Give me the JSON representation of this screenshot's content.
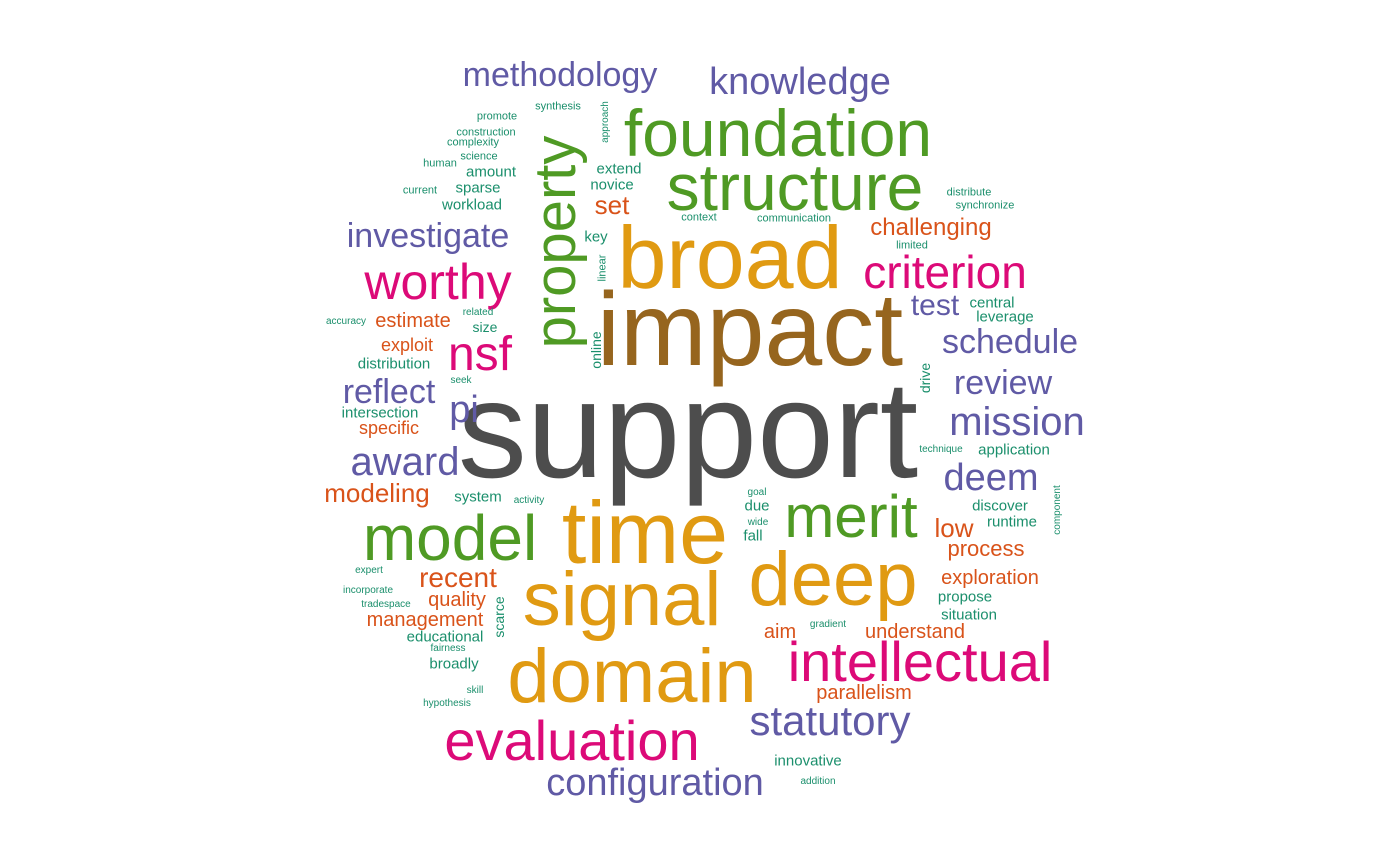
{
  "palette": {
    "gray": "#4d4d4d",
    "brown": "#96651e",
    "orange": "#e09a12",
    "green": "#4f9a24",
    "pink": "#dc0a78",
    "purple": "#605aa5",
    "red": "#d9531a",
    "teal": "#1b8f6c"
  },
  "words": [
    {
      "text": "support",
      "color": "gray"
    },
    {
      "text": "impact",
      "color": "brown"
    },
    {
      "text": "broad",
      "color": "orange"
    },
    {
      "text": "time",
      "color": "orange"
    },
    {
      "text": "signal",
      "color": "orange"
    },
    {
      "text": "deep",
      "color": "orange"
    },
    {
      "text": "domain",
      "color": "orange"
    },
    {
      "text": "structure",
      "color": "green"
    },
    {
      "text": "foundation",
      "color": "green"
    },
    {
      "text": "property",
      "color": "green"
    },
    {
      "text": "model",
      "color": "green"
    },
    {
      "text": "merit",
      "color": "green"
    },
    {
      "text": "intellectual",
      "color": "pink"
    },
    {
      "text": "evaluation",
      "color": "pink"
    },
    {
      "text": "worthy",
      "color": "pink"
    },
    {
      "text": "criterion",
      "color": "pink"
    },
    {
      "text": "nsf",
      "color": "pink"
    },
    {
      "text": "statutory",
      "color": "purple"
    },
    {
      "text": "configuration",
      "color": "purple"
    },
    {
      "text": "knowledge",
      "color": "purple"
    },
    {
      "text": "methodology",
      "color": "purple"
    },
    {
      "text": "investigate",
      "color": "purple"
    },
    {
      "text": "schedule",
      "color": "purple"
    },
    {
      "text": "mission",
      "color": "purple"
    },
    {
      "text": "review",
      "color": "purple"
    },
    {
      "text": "deem",
      "color": "purple"
    },
    {
      "text": "award",
      "color": "purple"
    },
    {
      "text": "reflect",
      "color": "purple"
    },
    {
      "text": "pi",
      "color": "purple"
    },
    {
      "text": "test",
      "color": "purple"
    },
    {
      "text": "challenging",
      "color": "red"
    },
    {
      "text": "modeling",
      "color": "red"
    },
    {
      "text": "recent",
      "color": "red"
    },
    {
      "text": "low",
      "color": "red"
    },
    {
      "text": "process",
      "color": "red"
    },
    {
      "text": "exploration",
      "color": "red"
    },
    {
      "text": "management",
      "color": "red"
    },
    {
      "text": "understand",
      "color": "red"
    },
    {
      "text": "parallelism",
      "color": "red"
    },
    {
      "text": "quality",
      "color": "red"
    },
    {
      "text": "estimate",
      "color": "red"
    },
    {
      "text": "exploit",
      "color": "red"
    },
    {
      "text": "specific",
      "color": "red"
    },
    {
      "text": "set",
      "color": "red"
    },
    {
      "text": "aim",
      "color": "red"
    },
    {
      "text": "extend",
      "color": "teal"
    },
    {
      "text": "novice",
      "color": "teal"
    },
    {
      "text": "amount",
      "color": "teal"
    },
    {
      "text": "sparse",
      "color": "teal"
    },
    {
      "text": "workload",
      "color": "teal"
    },
    {
      "text": "key",
      "color": "teal"
    },
    {
      "text": "central",
      "color": "teal"
    },
    {
      "text": "leverage",
      "color": "teal"
    },
    {
      "text": "size",
      "color": "teal"
    },
    {
      "text": "distribution",
      "color": "teal"
    },
    {
      "text": "intersection",
      "color": "teal"
    },
    {
      "text": "application",
      "color": "teal"
    },
    {
      "text": "system",
      "color": "teal"
    },
    {
      "text": "discover",
      "color": "teal"
    },
    {
      "text": "runtime",
      "color": "teal"
    },
    {
      "text": "due",
      "color": "teal"
    },
    {
      "text": "fall",
      "color": "teal"
    },
    {
      "text": "propose",
      "color": "teal"
    },
    {
      "text": "situation",
      "color": "teal"
    },
    {
      "text": "educational",
      "color": "teal"
    },
    {
      "text": "broadly",
      "color": "teal"
    },
    {
      "text": "innovative",
      "color": "teal"
    },
    {
      "text": "online",
      "color": "teal"
    },
    {
      "text": "drive",
      "color": "teal"
    },
    {
      "text": "scarce",
      "color": "teal"
    },
    {
      "text": "linear",
      "color": "teal"
    },
    {
      "text": "promote",
      "color": "teal"
    },
    {
      "text": "synthesis",
      "color": "teal"
    },
    {
      "text": "construction",
      "color": "teal"
    },
    {
      "text": "complexity",
      "color": "teal"
    },
    {
      "text": "human",
      "color": "teal"
    },
    {
      "text": "science",
      "color": "teal"
    },
    {
      "text": "current",
      "color": "teal"
    },
    {
      "text": "context",
      "color": "teal"
    },
    {
      "text": "communication",
      "color": "teal"
    },
    {
      "text": "distribute",
      "color": "teal"
    },
    {
      "text": "synchronize",
      "color": "teal"
    },
    {
      "text": "limited",
      "color": "teal"
    },
    {
      "text": "accuracy",
      "color": "teal"
    },
    {
      "text": "related",
      "color": "teal"
    },
    {
      "text": "seek",
      "color": "teal"
    },
    {
      "text": "technique",
      "color": "teal"
    },
    {
      "text": "activity",
      "color": "teal"
    },
    {
      "text": "goal",
      "color": "teal"
    },
    {
      "text": "wide",
      "color": "teal"
    },
    {
      "text": "expert",
      "color": "teal"
    },
    {
      "text": "incorporate",
      "color": "teal"
    },
    {
      "text": "tradespace",
      "color": "teal"
    },
    {
      "text": "fairness",
      "color": "teal"
    },
    {
      "text": "gradient",
      "color": "teal"
    },
    {
      "text": "skill",
      "color": "teal"
    },
    {
      "text": "hypothesis",
      "color": "teal"
    },
    {
      "text": "addition",
      "color": "teal"
    },
    {
      "text": "approach",
      "color": "teal"
    },
    {
      "text": "component",
      "color": "teal"
    }
  ]
}
